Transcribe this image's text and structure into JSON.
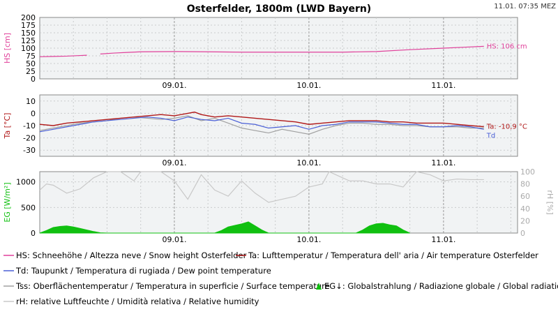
{
  "header": {
    "title": "Osterfelder, 1800m (LWD Bayern)",
    "timestamp": "11.01. 07:35 MEZ"
  },
  "colors": {
    "hs": "#e0409a",
    "ta": "#b01818",
    "td": "#4a5fd6",
    "tss": "#a0a0a0",
    "eg": "#10c010",
    "rh": "#c8c8c8"
  },
  "chart_data": [
    {
      "type": "line",
      "ylabel": "HS [cm]",
      "ylim": [
        0,
        200
      ],
      "yticks": [
        "0",
        "25",
        "50",
        "75",
        "100",
        "125",
        "150",
        "175",
        "200"
      ],
      "x_ticks": [
        "09.01.",
        "10.01.",
        "11.01."
      ],
      "xlim_days": [
        8.0,
        11.55
      ],
      "grid": true,
      "series": [
        {
          "name": "HS",
          "color": "#e0409a",
          "end_label": "HS: 106 cm",
          "segments": [
            {
              "x": [
                8.0,
                8.1,
                8.2,
                8.3,
                8.35
              ],
              "y": [
                72,
                73,
                74,
                76,
                77
              ]
            },
            {
              "x": [
                8.45,
                8.55,
                8.65,
                8.75,
                9.0,
                9.25,
                9.5,
                9.75,
                10.0,
                10.25,
                10.5,
                10.75,
                11.0,
                11.15,
                11.3
              ],
              "y": [
                81,
                84,
                86,
                88,
                89,
                88,
                87,
                87,
                87,
                87,
                89,
                95,
                100,
                103,
                106
              ]
            }
          ]
        }
      ]
    },
    {
      "type": "line",
      "ylabel": "Ta [°C]",
      "ylim": [
        -35,
        15
      ],
      "yticks": [
        "10",
        "0",
        "-10",
        "-20",
        "-30"
      ],
      "x_ticks": [
        "09.01.",
        "10.01.",
        "11.01."
      ],
      "grid": true,
      "series": [
        {
          "name": "Ta",
          "color": "#b01818",
          "end_label": "Ta: -10,9 °C",
          "x": [
            8.0,
            8.1,
            8.2,
            8.3,
            8.4,
            8.5,
            8.6,
            8.7,
            8.8,
            8.9,
            9.0,
            9.1,
            9.15,
            9.2,
            9.3,
            9.4,
            9.5,
            9.6,
            9.7,
            9.8,
            9.9,
            10.0,
            10.1,
            10.2,
            10.3,
            10.4,
            10.5,
            10.6,
            10.7,
            10.8,
            10.9,
            11.0,
            11.1,
            11.2,
            11.3
          ],
          "y": [
            -9,
            -10,
            -8,
            -7,
            -6,
            -5,
            -4,
            -3,
            -2,
            -1,
            -2,
            0,
            1,
            -1,
            -3,
            -2,
            -3,
            -4,
            -5,
            -6,
            -7,
            -9,
            -8,
            -7,
            -6,
            -6,
            -6,
            -7,
            -7,
            -8,
            -8,
            -8,
            -9,
            -10,
            -10.9
          ]
        },
        {
          "name": "Td",
          "color": "#4a5fd6",
          "end_label": "Td",
          "x": [
            8.0,
            8.1,
            8.2,
            8.3,
            8.4,
            8.5,
            8.6,
            8.7,
            8.8,
            8.9,
            9.0,
            9.1,
            9.2,
            9.3,
            9.4,
            9.5,
            9.6,
            9.7,
            9.8,
            9.9,
            10.0,
            10.1,
            10.2,
            10.3,
            10.4,
            10.5,
            10.6,
            10.7,
            10.8,
            10.9,
            11.0,
            11.1,
            11.2,
            11.3
          ],
          "y": [
            -15,
            -13,
            -11,
            -9,
            -7,
            -6,
            -5,
            -4,
            -3,
            -4,
            -6,
            -3,
            -5,
            -6,
            -4,
            -8,
            -9,
            -12,
            -11,
            -10,
            -13,
            -10,
            -9,
            -7,
            -7,
            -7,
            -8,
            -9,
            -9,
            -11,
            -11,
            -10,
            -11,
            -13
          ]
        },
        {
          "name": "Tss",
          "color": "#a0a0a0",
          "x": [
            8.0,
            8.1,
            8.2,
            8.3,
            8.4,
            8.5,
            8.6,
            8.7,
            8.8,
            8.9,
            9.0,
            9.1,
            9.2,
            9.3,
            9.4,
            9.5,
            9.6,
            9.7,
            9.8,
            9.9,
            10.0,
            10.1,
            10.2,
            10.3,
            10.4,
            10.5,
            10.6,
            10.7,
            10.8,
            10.9,
            11.0,
            11.1,
            11.2,
            11.3
          ],
          "y": [
            -14,
            -12,
            -10,
            -8,
            -7,
            -6,
            -4,
            -3,
            -4,
            -5,
            -4,
            -2,
            -6,
            -4,
            -8,
            -12,
            -14,
            -16,
            -13,
            -15,
            -17,
            -13,
            -10,
            -8,
            -8,
            -9,
            -9,
            -10,
            -10,
            -11,
            -11,
            -11,
            -12,
            -12
          ]
        }
      ]
    },
    {
      "type": "area",
      "ylabel": "EG [W/m²]",
      "ylim": [
        0,
        1200
      ],
      "yticks": [
        "0",
        "500",
        "1000"
      ],
      "y2label": "rH [%]",
      "y2lim": [
        0,
        100
      ],
      "y2ticks": [
        "0",
        "20",
        "40",
        "60",
        "80",
        "100"
      ],
      "x_ticks": [
        "09.01.",
        "10.01.",
        "11.01."
      ],
      "grid": true,
      "series": [
        {
          "name": "EG",
          "color": "#10c010",
          "x": [
            8.0,
            8.05,
            8.1,
            8.15,
            8.2,
            8.25,
            8.3,
            8.35,
            8.4,
            8.45,
            8.5,
            9.3,
            9.35,
            9.4,
            9.45,
            9.5,
            9.55,
            9.6,
            9.65,
            9.7,
            10.35,
            10.4,
            10.45,
            10.5,
            10.55,
            10.6,
            10.65,
            10.7,
            10.75
          ],
          "y": [
            0,
            50,
            110,
            130,
            140,
            120,
            90,
            60,
            30,
            5,
            0,
            0,
            50,
            120,
            150,
            180,
            220,
            140,
            60,
            0,
            0,
            60,
            140,
            180,
            190,
            160,
            140,
            60,
            0
          ]
        },
        {
          "name": "rH",
          "color": "#c8c8c8",
          "axis": "right",
          "x": [
            8.0,
            8.05,
            8.1,
            8.2,
            8.3,
            8.4,
            8.5,
            8.6,
            8.7,
            8.75,
            8.8,
            8.9,
            9.0,
            9.1,
            9.2,
            9.3,
            9.4,
            9.5,
            9.6,
            9.7,
            9.8,
            9.9,
            10.0,
            10.1,
            10.15,
            10.2,
            10.3,
            10.4,
            10.5,
            10.6,
            10.7,
            10.8,
            10.9,
            11.0,
            11.1,
            11.2,
            11.3
          ],
          "y": [
            70,
            80,
            78,
            65,
            72,
            90,
            100,
            100,
            85,
            100,
            100,
            100,
            85,
            55,
            95,
            70,
            60,
            85,
            65,
            50,
            55,
            60,
            75,
            80,
            100,
            95,
            85,
            85,
            80,
            80,
            75,
            100,
            95,
            85,
            88,
            87,
            87
          ]
        }
      ]
    }
  ],
  "legend": [
    {
      "id": "hs",
      "text": "HS: Schneehöhe / Altezza neve / Snow height  Osterfelder",
      "color": "#e0409a",
      "marker": "line"
    },
    {
      "id": "ta",
      "text": "Ta: Lufttemperatur / Temperatura dell' aria / Air temperature  Osterfelder",
      "color": "#b01818",
      "marker": "line"
    },
    {
      "id": "td",
      "text": "Td: Taupunkt / Temperatura di rugiada / Dew point temperature",
      "color": "#4a5fd6",
      "marker": "line"
    },
    {
      "id": "tss",
      "text": "Tss: Oberflächentemperatur / Temperatura in superficie / Surface temperature",
      "color": "#a0a0a0",
      "marker": "line"
    },
    {
      "id": "eg",
      "text": "EG↓: Globalstrahlung / Radiazione globale / Global radiation",
      "color": "#10c010",
      "marker": "area"
    },
    {
      "id": "rh",
      "text": "rH: relative Luftfeuchte / Umidità relativa / Relative humidity",
      "color": "#c8c8c8",
      "marker": "line"
    }
  ]
}
